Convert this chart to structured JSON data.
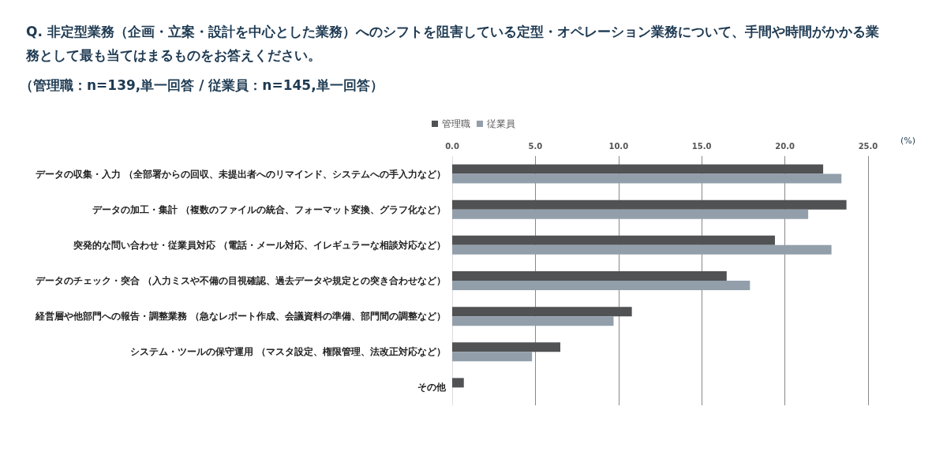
{
  "chart_data": {
    "type": "bar",
    "orientation": "horizontal",
    "title": "Q. 非定型業務（企画・立案・設計を中心とした業務）へのシフトを阻害している定型・オペレーション業務について、手間や時間がかかる業務として最も当てはまるものをお答えください。",
    "subtitle": "（管理職：n=139,単一回答 / 従業員：n=145,単一回答）",
    "xlabel": "(%)",
    "categories": [
      "データの収集・入力 （全部署からの回収、未提出者へのリマインド、システムへの手入力など）",
      "データの加工・集計 （複数のファイルの統合、フォーマット変換、グラフ化など）",
      "突発的な問い合わせ・従業員対応 （電話・メール対応、イレギュラーな相談対応など）",
      "データのチェック・突合 （入力ミスや不備の目視確認、過去データや規定との突き合わせなど）",
      "経営層や他部門への報告・調整業務 （急なレポート作成、会議資料の準備、部門間の調整など）",
      "システム・ツールの保守運用 （マスタ設定、権限管理、法改正対応など）",
      "その他"
    ],
    "series": [
      {
        "name": "管理職",
        "color": "#505254",
        "values": [
          22.3,
          23.7,
          19.4,
          16.5,
          10.8,
          6.5,
          0.7
        ]
      },
      {
        "name": "従業員",
        "color": "#929fab",
        "values": [
          23.4,
          21.4,
          22.8,
          17.9,
          9.7,
          4.8,
          0
        ]
      }
    ],
    "xlim": [
      0,
      25
    ],
    "xticks": [
      {
        "value": 0,
        "label": "0.0"
      },
      {
        "value": 5,
        "label": "5.0"
      },
      {
        "value": 10,
        "label": "10.0"
      },
      {
        "value": 15,
        "label": "15.0"
      },
      {
        "value": 20,
        "label": "20.0"
      },
      {
        "value": 25,
        "label": "25.0"
      }
    ],
    "grid": "x",
    "legend": "top"
  }
}
